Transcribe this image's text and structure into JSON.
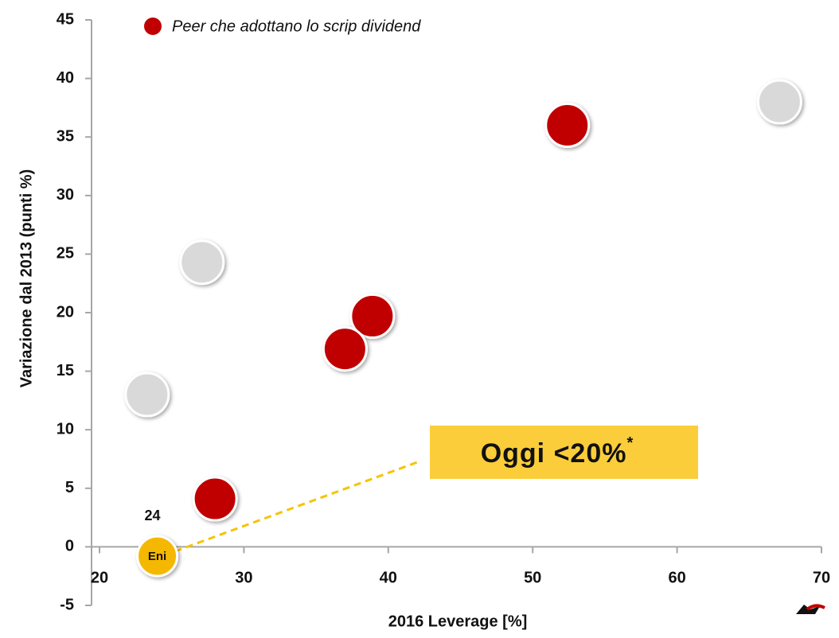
{
  "chart_data": {
    "type": "scatter",
    "xlabel": "2016 Leverage [%]",
    "ylabel": "Variazione dal 2013 (punti %)",
    "xlim": [
      20,
      70
    ],
    "xticks": [
      20,
      30,
      40,
      50,
      60,
      70
    ],
    "ylim": [
      -5,
      45
    ],
    "yticks": [
      -5,
      0,
      5,
      10,
      15,
      20,
      25,
      30,
      35,
      40,
      45
    ],
    "legend": "top-left",
    "series": [
      {
        "name": "Peer che adottano lo scrip dividend",
        "color": "#c00000",
        "x": [
          52.4,
          38.9,
          37.0,
          28.0
        ],
        "values": [
          36.0,
          19.7,
          16.9,
          4.1
        ]
      },
      {
        "color": "#d9d9d9",
        "x": [
          67.1,
          27.1,
          23.3
        ],
        "values": [
          38.0,
          24.3,
          13.0
        ]
      },
      {
        "name": "Eni",
        "color": "#f5b800",
        "x": [
          24
        ],
        "values": [
          -0.8
        ]
      }
    ],
    "annotation": {
      "text": "Oggi <20%",
      "note": "*"
    }
  }
}
